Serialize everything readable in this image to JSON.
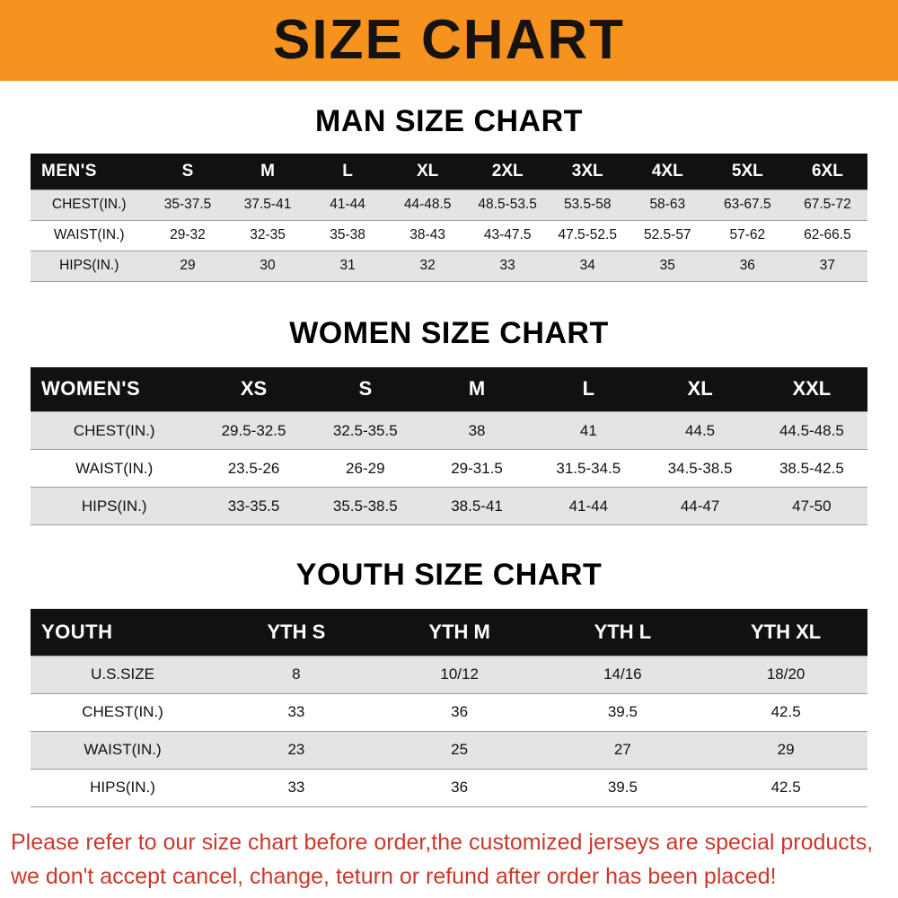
{
  "banner": {
    "title": "SIZE CHART"
  },
  "sections": [
    {
      "heading": "MAN SIZE CHART"
    },
    {
      "heading": "WOMEN SIZE CHART"
    },
    {
      "heading": "YOUTH SIZE CHART"
    }
  ],
  "chart_data": [
    {
      "type": "table",
      "title": "MAN SIZE CHART",
      "columns": [
        "MEN'S",
        "S",
        "M",
        "L",
        "XL",
        "2XL",
        "3XL",
        "4XL",
        "5XL",
        "6XL"
      ],
      "rows": [
        [
          "CHEST(IN.)",
          "35-37.5",
          "37.5-41",
          "41-44",
          "44-48.5",
          "48.5-53.5",
          "53.5-58",
          "58-63",
          "63-67.5",
          "67.5-72"
        ],
        [
          "WAIST(IN.)",
          "29-32",
          "32-35",
          "35-38",
          "38-43",
          "43-47.5",
          "47.5-52.5",
          "52.5-57",
          "57-62",
          "62-66.5"
        ],
        [
          "HIPS(IN.)",
          "29",
          "30",
          "31",
          "32",
          "33",
          "34",
          "35",
          "36",
          "37"
        ]
      ]
    },
    {
      "type": "table",
      "title": "WOMEN SIZE CHART",
      "columns": [
        "WOMEN'S",
        "XS",
        "S",
        "M",
        "L",
        "XL",
        "XXL"
      ],
      "rows": [
        [
          "CHEST(IN.)",
          "29.5-32.5",
          "32.5-35.5",
          "38",
          "41",
          "44.5",
          "44.5-48.5"
        ],
        [
          "WAIST(IN.)",
          "23.5-26",
          "26-29",
          "29-31.5",
          "31.5-34.5",
          "34.5-38.5",
          "38.5-42.5"
        ],
        [
          "HIPS(IN.)",
          "33-35.5",
          "35.5-38.5",
          "38.5-41",
          "41-44",
          "44-47",
          "47-50"
        ]
      ]
    },
    {
      "type": "table",
      "title": "YOUTH SIZE CHART",
      "columns": [
        "YOUTH",
        "YTH S",
        "YTH M",
        "YTH L",
        "YTH XL"
      ],
      "rows": [
        [
          "U.S.SIZE",
          "8",
          "10/12",
          "14/16",
          "18/20"
        ],
        [
          "CHEST(IN.)",
          "33",
          "36",
          "39.5",
          "42.5"
        ],
        [
          "WAIST(IN.)",
          "23",
          "25",
          "27",
          "29"
        ],
        [
          "HIPS(IN.)",
          "33",
          "36",
          "39.5",
          "42.5"
        ]
      ]
    }
  ],
  "footer": {
    "line1": "Please refer to our size chart before order,the customized jerseys are special products,",
    "line2": "we don't accept cancel, change, teturn or refund after order has been placed!"
  },
  "colors": {
    "banner_bg": "#F6921E",
    "banner_text": "#161210",
    "table_header_bg": "#111111",
    "table_header_text": "#FFFFFF",
    "row_alt_bg": "#E4E4E4",
    "footer_text": "#C9392B"
  }
}
